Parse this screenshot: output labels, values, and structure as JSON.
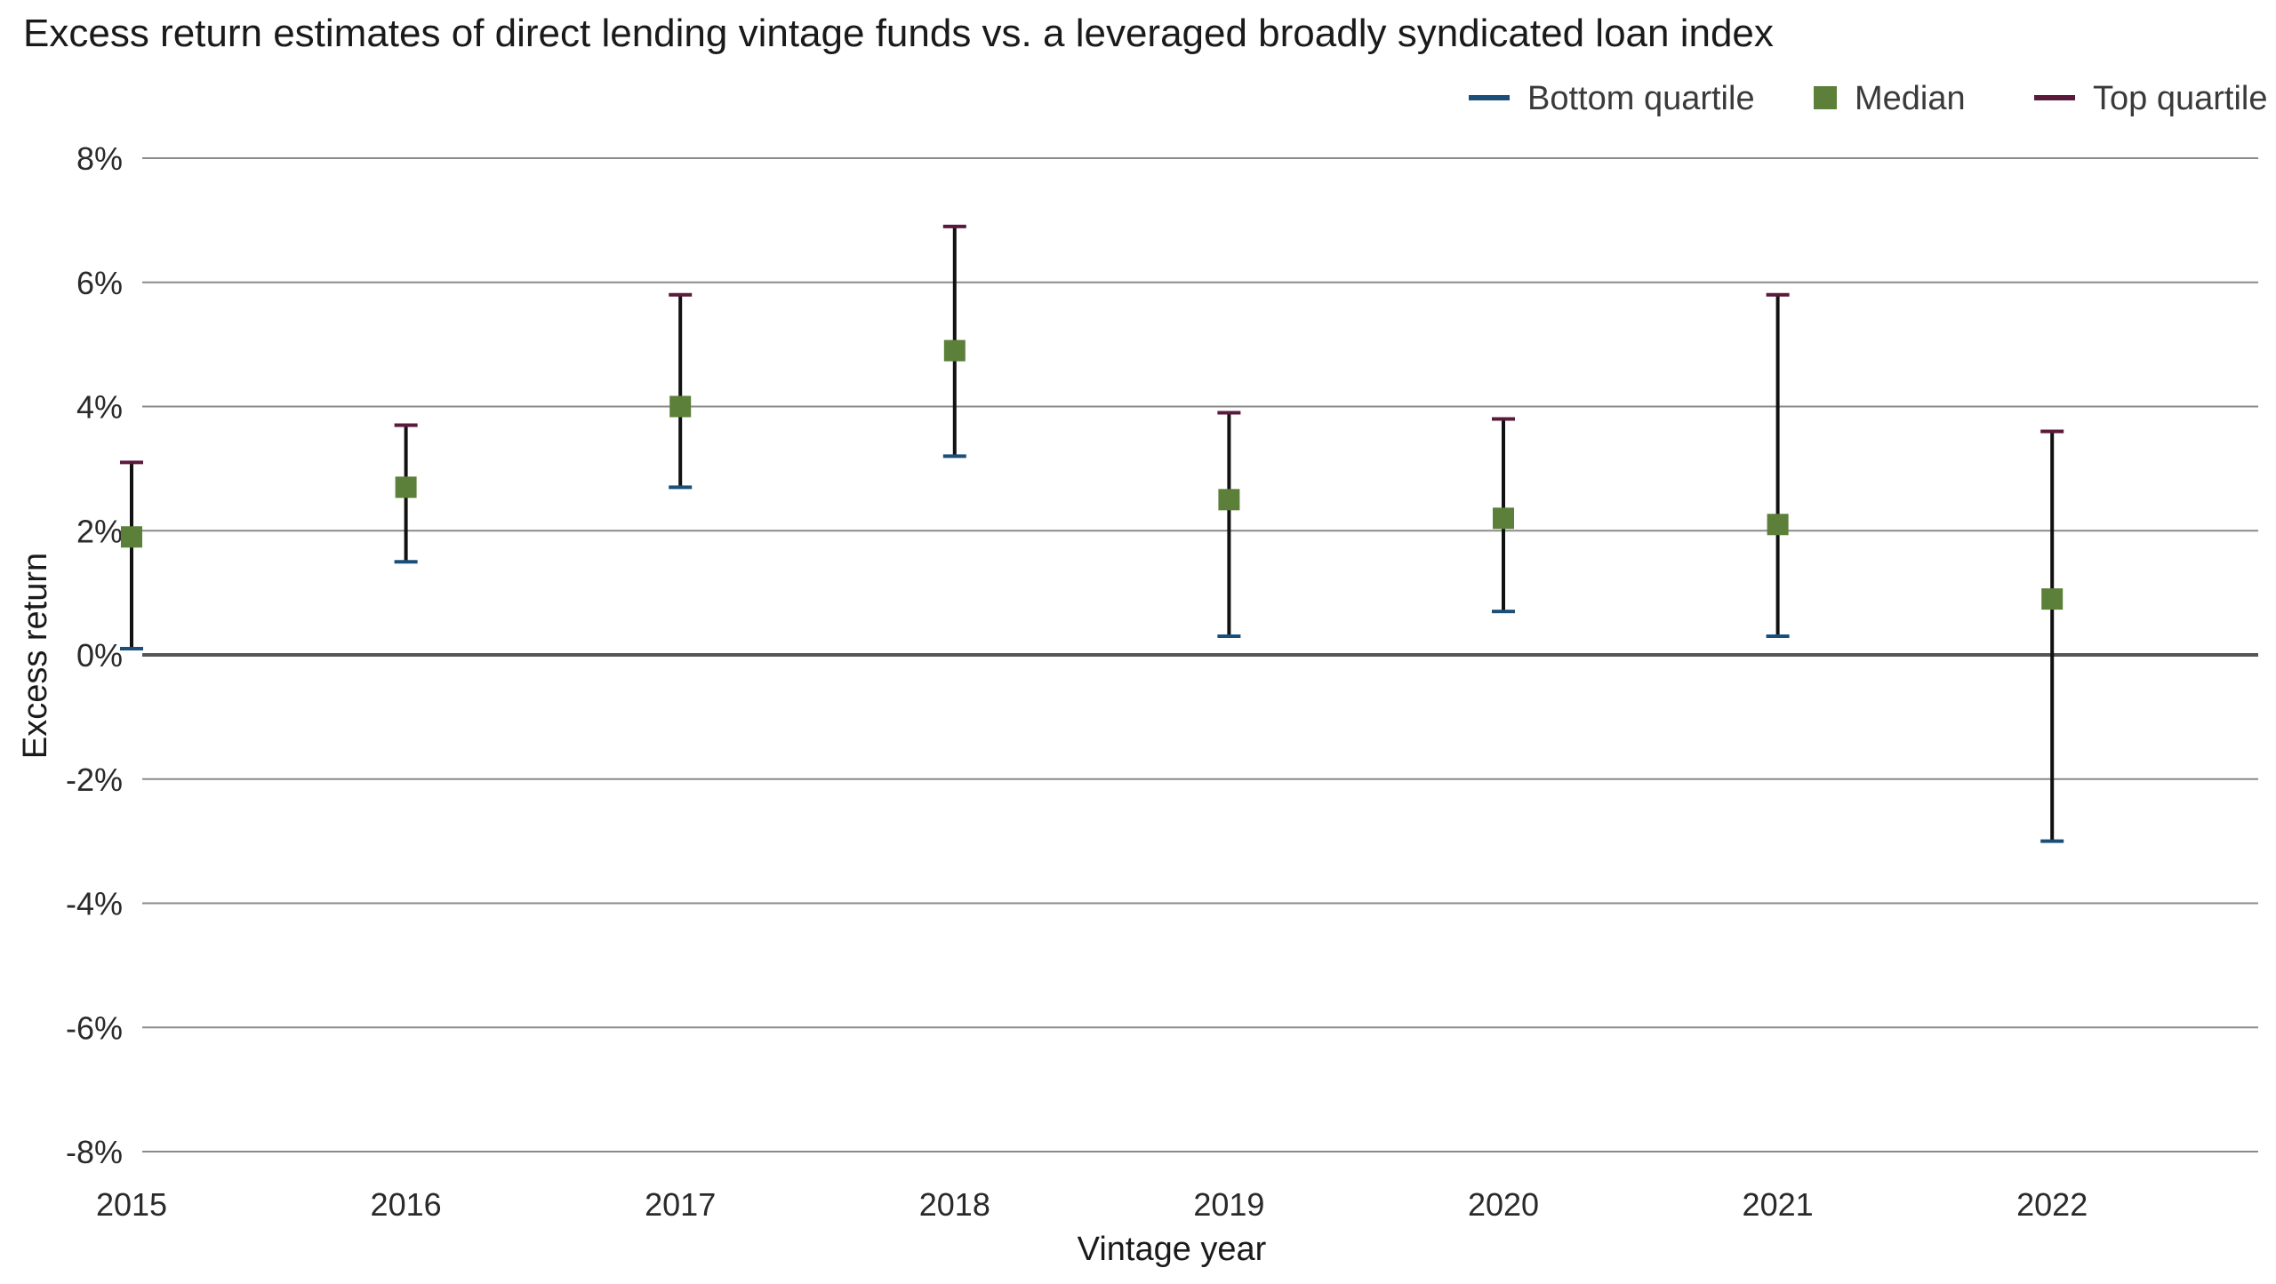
{
  "chart_data": {
    "type": "errorbar",
    "title": "Excess return estimates of direct lending vintage funds vs. a leveraged broadly syndicated loan index",
    "xlabel": "Vintage year",
    "ylabel": "Excess return",
    "categories": [
      "2015",
      "2016",
      "2017",
      "2018",
      "2019",
      "2020",
      "2021",
      "2022"
    ],
    "series": [
      {
        "name": "Bottom quartile",
        "values": [
          0.1,
          1.5,
          2.7,
          3.2,
          0.3,
          0.7,
          0.3,
          -3.0
        ]
      },
      {
        "name": "Median",
        "values": [
          1.9,
          2.7,
          4.0,
          4.9,
          2.5,
          2.2,
          2.1,
          0.9
        ]
      },
      {
        "name": "Top quartile",
        "values": [
          3.1,
          3.7,
          5.8,
          6.9,
          3.9,
          3.8,
          5.8,
          3.6
        ]
      }
    ],
    "ylim": [
      -8,
      8
    ],
    "yticks": [
      8,
      6,
      4,
      2,
      0,
      -2,
      -4,
      -6,
      -8
    ],
    "ytick_labels": [
      "8%",
      "6%",
      "4%",
      "2%",
      "0%",
      "-2%",
      "-4%",
      "-6%",
      "-8%"
    ],
    "grid": true,
    "legend_position": "top-right",
    "colors": {
      "bottom_quartile": "#1b4f7a",
      "median": "#5c7f3a",
      "top_quartile": "#5a1a3c",
      "whisker": "#111111",
      "grid": "#8a8a8a",
      "zero_line": "#555555"
    }
  }
}
